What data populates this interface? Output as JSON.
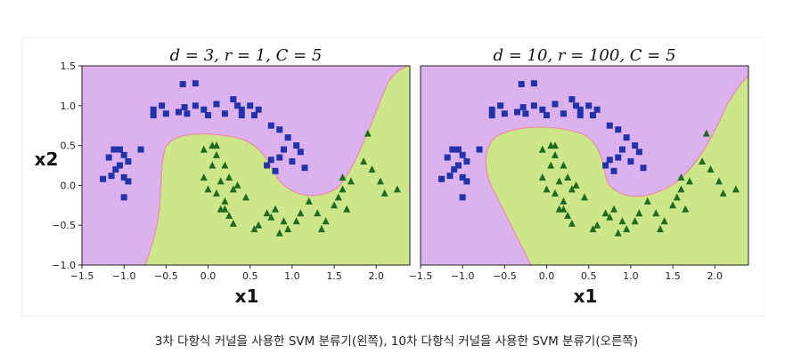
{
  "caption": "3차 다항식 커널을 사용한 SVM 분류기(왼쪽), 10차 다항식 커널을 사용한 SVM 분류기(오른쪽)",
  "colors": {
    "region_a": "#dcb2ee",
    "region_b": "#cde68a",
    "square": "#2233aa",
    "triangle": "#1e6a1e",
    "boundary": "#ea8ea2"
  },
  "chart_data": [
    {
      "type": "scatter",
      "title": "d = 3, r = 1, C = 5",
      "xlabel": "x1",
      "ylabel": "x2",
      "xlim": [
        -1.5,
        2.4
      ],
      "ylim": [
        -1.0,
        1.5
      ],
      "xticks": [
        "−1.5",
        "−1.0",
        "−0.5",
        "0.0",
        "0.5",
        "1.0",
        "1.5",
        "2.0"
      ],
      "yticks": [
        "1.5",
        "1.0",
        "0.5",
        "0.0",
        "−0.5",
        "−1.0"
      ],
      "series": [
        {
          "marker": "square",
          "points": [
            [
              -0.15,
              1.28
            ],
            [
              -0.3,
              1.27
            ],
            [
              -0.55,
              1.0
            ],
            [
              -0.65,
              0.88
            ],
            [
              -0.65,
              0.95
            ],
            [
              -0.5,
              0.9
            ],
            [
              -0.35,
              0.92
            ],
            [
              -0.28,
              0.98
            ],
            [
              -0.25,
              0.9
            ],
            [
              -0.15,
              1.0
            ],
            [
              -0.05,
              0.95
            ],
            [
              0.0,
              0.88
            ],
            [
              0.1,
              1.02
            ],
            [
              0.2,
              0.9
            ],
            [
              0.3,
              1.08
            ],
            [
              0.35,
              1.0
            ],
            [
              0.4,
              0.95
            ],
            [
              0.4,
              0.88
            ],
            [
              0.5,
              1.0
            ],
            [
              0.55,
              0.88
            ],
            [
              0.6,
              0.95
            ],
            [
              0.75,
              0.75
            ],
            [
              0.85,
              0.7
            ],
            [
              0.9,
              0.45
            ],
            [
              0.95,
              0.6
            ],
            [
              0.85,
              0.35
            ],
            [
              1.0,
              0.3
            ],
            [
              1.05,
              0.5
            ],
            [
              1.1,
              0.42
            ],
            [
              1.15,
              0.22
            ],
            [
              0.75,
              0.32
            ],
            [
              0.8,
              0.18
            ],
            [
              0.7,
              0.25
            ],
            [
              -1.05,
              0.45
            ],
            [
              -1.12,
              0.45
            ],
            [
              -1.18,
              0.35
            ],
            [
              -1.0,
              0.38
            ],
            [
              -1.05,
              0.25
            ],
            [
              -1.1,
              0.2
            ],
            [
              -1.15,
              0.12
            ],
            [
              -0.95,
              0.3
            ],
            [
              -1.25,
              0.08
            ],
            [
              -1.0,
              0.1
            ],
            [
              -0.95,
              0.05
            ],
            [
              -1.0,
              -0.15
            ],
            [
              -0.8,
              0.45
            ]
          ]
        },
        {
          "marker": "triangle",
          "points": [
            [
              0.05,
              0.5
            ],
            [
              0.1,
              0.5
            ],
            [
              -0.05,
              0.45
            ],
            [
              0.1,
              0.38
            ],
            [
              0.2,
              0.25
            ],
            [
              0.05,
              0.25
            ],
            [
              -0.05,
              0.1
            ],
            [
              0.15,
              0.05
            ],
            [
              0.25,
              0.1
            ],
            [
              0.0,
              -0.05
            ],
            [
              0.1,
              -0.1
            ],
            [
              0.2,
              -0.2
            ],
            [
              0.3,
              -0.05
            ],
            [
              0.35,
              0.0
            ],
            [
              0.45,
              -0.15
            ],
            [
              0.2,
              -0.3
            ],
            [
              0.25,
              -0.38
            ],
            [
              0.3,
              -0.48
            ],
            [
              0.55,
              -0.55
            ],
            [
              0.7,
              -0.35
            ],
            [
              0.75,
              -0.4
            ],
            [
              0.8,
              -0.3
            ],
            [
              0.9,
              -0.45
            ],
            [
              0.95,
              -0.55
            ],
            [
              1.05,
              -0.45
            ],
            [
              1.1,
              -0.35
            ],
            [
              1.2,
              -0.2
            ],
            [
              1.3,
              -0.35
            ],
            [
              1.35,
              -0.55
            ],
            [
              1.5,
              -0.25
            ],
            [
              1.55,
              -0.15
            ],
            [
              1.6,
              -0.05
            ],
            [
              1.65,
              -0.3
            ],
            [
              1.7,
              0.05
            ],
            [
              1.85,
              0.3
            ],
            [
              1.9,
              0.65
            ],
            [
              1.95,
              0.2
            ],
            [
              2.05,
              0.05
            ],
            [
              2.1,
              -0.1
            ],
            [
              2.25,
              -0.05
            ],
            [
              1.6,
              0.1
            ],
            [
              0.15,
              -0.3
            ],
            [
              0.6,
              -0.5
            ],
            [
              0.85,
              -0.6
            ],
            [
              1.4,
              -0.45
            ]
          ]
        }
      ]
    },
    {
      "type": "scatter",
      "title": "d = 10, r = 100, C = 5",
      "xlabel": "x1",
      "ylabel": "",
      "xlim": [
        -1.5,
        2.4
      ],
      "ylim": [
        -1.0,
        1.5
      ],
      "xticks": [
        "−1.5",
        "−1.0",
        "−0.5",
        "0.0",
        "0.5",
        "1.0",
        "1.5",
        "2.0"
      ],
      "yticks": [],
      "series": [
        {
          "marker": "square",
          "points": [
            [
              -0.15,
              1.28
            ],
            [
              -0.3,
              1.27
            ],
            [
              -0.55,
              1.0
            ],
            [
              -0.65,
              0.88
            ],
            [
              -0.65,
              0.95
            ],
            [
              -0.5,
              0.9
            ],
            [
              -0.35,
              0.92
            ],
            [
              -0.28,
              0.98
            ],
            [
              -0.25,
              0.9
            ],
            [
              -0.15,
              1.0
            ],
            [
              -0.05,
              0.95
            ],
            [
              0.0,
              0.88
            ],
            [
              0.1,
              1.02
            ],
            [
              0.2,
              0.9
            ],
            [
              0.3,
              1.08
            ],
            [
              0.35,
              1.0
            ],
            [
              0.4,
              0.95
            ],
            [
              0.4,
              0.88
            ],
            [
              0.5,
              1.0
            ],
            [
              0.55,
              0.88
            ],
            [
              0.6,
              0.95
            ],
            [
              0.75,
              0.75
            ],
            [
              0.85,
              0.7
            ],
            [
              0.9,
              0.45
            ],
            [
              0.95,
              0.6
            ],
            [
              0.85,
              0.35
            ],
            [
              1.0,
              0.3
            ],
            [
              1.05,
              0.5
            ],
            [
              1.1,
              0.42
            ],
            [
              1.15,
              0.22
            ],
            [
              0.75,
              0.32
            ],
            [
              0.8,
              0.18
            ],
            [
              0.7,
              0.25
            ],
            [
              -1.05,
              0.45
            ],
            [
              -1.12,
              0.45
            ],
            [
              -1.18,
              0.35
            ],
            [
              -1.0,
              0.38
            ],
            [
              -1.05,
              0.25
            ],
            [
              -1.1,
              0.2
            ],
            [
              -1.15,
              0.12
            ],
            [
              -0.95,
              0.3
            ],
            [
              -1.25,
              0.08
            ],
            [
              -1.0,
              0.1
            ],
            [
              -0.95,
              0.05
            ],
            [
              -1.0,
              -0.15
            ],
            [
              -0.8,
              0.45
            ]
          ]
        },
        {
          "marker": "triangle",
          "points": [
            [
              0.05,
              0.5
            ],
            [
              0.1,
              0.5
            ],
            [
              -0.05,
              0.45
            ],
            [
              0.1,
              0.38
            ],
            [
              0.2,
              0.25
            ],
            [
              0.05,
              0.25
            ],
            [
              -0.05,
              0.1
            ],
            [
              0.15,
              0.05
            ],
            [
              0.25,
              0.1
            ],
            [
              0.0,
              -0.05
            ],
            [
              0.1,
              -0.1
            ],
            [
              0.2,
              -0.2
            ],
            [
              0.3,
              -0.05
            ],
            [
              0.35,
              0.0
            ],
            [
              0.45,
              -0.15
            ],
            [
              0.2,
              -0.3
            ],
            [
              0.25,
              -0.38
            ],
            [
              0.3,
              -0.48
            ],
            [
              0.55,
              -0.55
            ],
            [
              0.7,
              -0.35
            ],
            [
              0.75,
              -0.4
            ],
            [
              0.8,
              -0.3
            ],
            [
              0.9,
              -0.45
            ],
            [
              0.95,
              -0.55
            ],
            [
              1.05,
              -0.45
            ],
            [
              1.1,
              -0.35
            ],
            [
              1.2,
              -0.2
            ],
            [
              1.3,
              -0.35
            ],
            [
              1.35,
              -0.55
            ],
            [
              1.5,
              -0.25
            ],
            [
              1.55,
              -0.15
            ],
            [
              1.6,
              -0.05
            ],
            [
              1.65,
              -0.3
            ],
            [
              1.7,
              0.05
            ],
            [
              1.85,
              0.3
            ],
            [
              1.9,
              0.65
            ],
            [
              1.95,
              0.2
            ],
            [
              2.05,
              0.05
            ],
            [
              2.1,
              -0.1
            ],
            [
              2.25,
              -0.05
            ],
            [
              1.6,
              0.1
            ],
            [
              0.15,
              -0.3
            ],
            [
              0.6,
              -0.5
            ],
            [
              0.85,
              -0.6
            ],
            [
              1.4,
              -0.45
            ]
          ]
        }
      ]
    }
  ]
}
